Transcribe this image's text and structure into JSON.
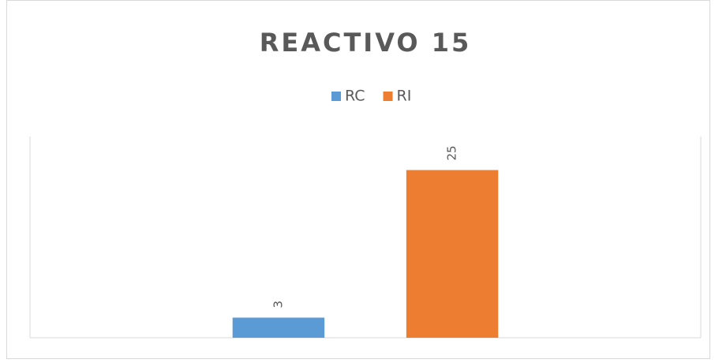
{
  "chart_data": {
    "type": "bar",
    "title": "REACTIVO 15",
    "categories": [
      null
    ],
    "series": [
      {
        "name": "RC",
        "color": "#5b9bd5",
        "values": [
          3
        ]
      },
      {
        "name": "RI",
        "color": "#ed7d31",
        "values": [
          25
        ]
      }
    ],
    "ylim": [
      0,
      30
    ],
    "legend": "top",
    "data_labels": true
  }
}
